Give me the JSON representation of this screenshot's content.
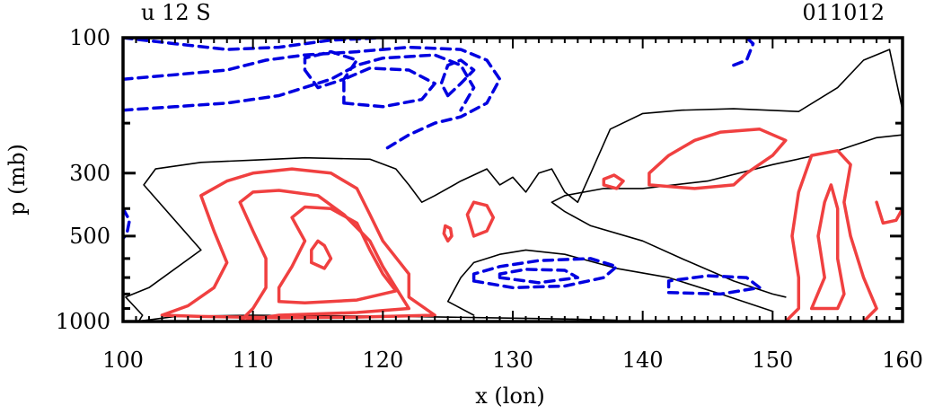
{
  "chart_data": {
    "type": "contour",
    "title_left": "u 12 S",
    "title_right": "011012",
    "xlabel": "x (lon)",
    "ylabel": "p (mb)",
    "xlim": [
      100,
      160
    ],
    "ylim": [
      1000,
      100
    ],
    "yscale": "log",
    "x_ticks": [
      {
        "value": 100,
        "label": "100"
      },
      {
        "value": 110,
        "label": "110"
      },
      {
        "value": 120,
        "label": "120"
      },
      {
        "value": 130,
        "label": "130"
      },
      {
        "value": 140,
        "label": "140"
      },
      {
        "value": 150,
        "label": "150"
      },
      {
        "value": 160,
        "label": "160"
      }
    ],
    "y_ticks": [
      {
        "value": 100,
        "label": "100"
      },
      {
        "value": 300,
        "label": "300"
      },
      {
        "value": 500,
        "label": "500"
      },
      {
        "value": 1000,
        "label": "1000"
      }
    ],
    "contour_colors": {
      "positive": "#f04040",
      "zero": "#000000",
      "negative": "#0000e0"
    },
    "contours": [
      {
        "sign": "zero",
        "points": [
          [
            101.2,
            1000
          ],
          [
            101.5,
            950
          ],
          [
            100.2,
            820
          ],
          [
            102,
            760
          ],
          [
            106,
            560
          ],
          [
            101.6,
            330
          ],
          [
            102.5,
            290
          ],
          [
            106,
            275
          ],
          [
            110,
            270
          ],
          [
            114,
            265
          ],
          [
            119,
            268
          ],
          [
            121,
            290
          ],
          [
            122,
            330
          ],
          [
            123,
            380
          ],
          [
            124,
            360
          ],
          [
            126,
            320
          ],
          [
            128,
            290
          ],
          [
            129,
            330
          ],
          [
            130,
            310
          ],
          [
            131,
            350
          ],
          [
            132,
            300
          ],
          [
            133,
            290
          ],
          [
            134,
            350
          ],
          [
            135,
            380
          ],
          [
            136,
            300
          ],
          [
            137.5,
            210
          ],
          [
            140,
            185
          ],
          [
            143,
            180
          ],
          [
            147,
            178
          ],
          [
            152,
            182
          ],
          [
            155,
            150
          ],
          [
            157,
            120
          ],
          [
            159,
            110
          ],
          [
            160,
            180
          ]
        ]
      },
      {
        "sign": "zero",
        "points": [
          [
            160,
            220
          ],
          [
            158,
            225
          ],
          [
            155,
            250
          ],
          [
            150,
            280
          ],
          [
            145,
            320
          ],
          [
            140,
            340
          ],
          [
            137,
            340
          ],
          [
            134,
            360
          ],
          [
            133,
            380
          ],
          [
            134,
            410
          ],
          [
            136,
            460
          ],
          [
            140,
            520
          ],
          [
            143,
            600
          ],
          [
            147,
            720
          ],
          [
            150,
            800
          ],
          [
            151,
            820
          ]
        ]
      },
      {
        "sign": "zero",
        "points": [
          [
            127,
            950
          ],
          [
            125,
            850
          ],
          [
            126,
            700
          ],
          [
            127,
            620
          ],
          [
            129,
            580
          ],
          [
            131,
            560
          ],
          [
            134,
            580
          ],
          [
            138,
            650
          ],
          [
            142,
            700
          ],
          [
            146,
            800
          ],
          [
            150,
            920
          ]
        ]
      },
      {
        "sign": "zero",
        "points": [
          [
            101,
            1000
          ],
          [
            104,
            960
          ],
          [
            110,
            950
          ],
          [
            116,
            955
          ],
          [
            122,
            960
          ],
          [
            128,
            970
          ],
          [
            134,
            980
          ],
          [
            138,
            990
          ]
        ]
      },
      {
        "sign": "positive",
        "points": [
          [
            103,
            950
          ],
          [
            106,
            960
          ],
          [
            112,
            970
          ],
          [
            118,
            965
          ],
          [
            124,
            950
          ],
          [
            122,
            820
          ],
          [
            122,
            680
          ],
          [
            120,
            520
          ],
          [
            119,
            420
          ],
          [
            118,
            340
          ],
          [
            116,
            300
          ],
          [
            113,
            290
          ],
          [
            110,
            300
          ],
          [
            108,
            320
          ],
          [
            106,
            360
          ],
          [
            107,
            480
          ],
          [
            108,
            620
          ],
          [
            107,
            760
          ],
          [
            105,
            880
          ],
          [
            103,
            950
          ]
        ]
      },
      {
        "sign": "positive",
        "points": [
          [
            109,
            1000
          ],
          [
            112,
            950
          ],
          [
            118,
            930
          ],
          [
            122,
            900
          ],
          [
            121,
            760
          ],
          [
            120,
            640
          ],
          [
            119,
            520
          ],
          [
            117,
            420
          ],
          [
            115,
            360
          ],
          [
            112,
            345
          ],
          [
            110,
            350
          ],
          [
            109,
            380
          ],
          [
            110,
            480
          ],
          [
            111,
            600
          ],
          [
            111,
            760
          ],
          [
            110,
            900
          ],
          [
            109,
            1000
          ]
        ]
      },
      {
        "sign": "positive",
        "points": [
          [
            112,
            850
          ],
          [
            114,
            860
          ],
          [
            118,
            840
          ],
          [
            121,
            780
          ],
          [
            120,
            680
          ],
          [
            119,
            560
          ],
          [
            118,
            450
          ],
          [
            116,
            400
          ],
          [
            114,
            395
          ],
          [
            113,
            430
          ],
          [
            114,
            520
          ],
          [
            113,
            640
          ],
          [
            112,
            760
          ],
          [
            112,
            850
          ]
        ]
      },
      {
        "sign": "positive",
        "points": [
          [
            114.5,
            620
          ],
          [
            115.5,
            650
          ],
          [
            116,
            600
          ],
          [
            115.5,
            540
          ],
          [
            115,
            520
          ],
          [
            114.5,
            560
          ],
          [
            114.5,
            620
          ]
        ]
      },
      {
        "sign": "positive",
        "points": [
          [
            140.5,
            330
          ],
          [
            144,
            340
          ],
          [
            147,
            330
          ],
          [
            148,
            300
          ],
          [
            150,
            260
          ],
          [
            151,
            230
          ],
          [
            149,
            210
          ],
          [
            146,
            215
          ],
          [
            144,
            230
          ],
          [
            142,
            260
          ],
          [
            140.5,
            300
          ],
          [
            140.5,
            330
          ]
        ]
      },
      {
        "sign": "positive",
        "points": [
          [
            151,
            1000
          ],
          [
            152,
            900
          ],
          [
            152,
            700
          ],
          [
            151.5,
            500
          ],
          [
            152,
            350
          ],
          [
            153,
            260
          ],
          [
            155,
            250
          ],
          [
            156,
            280
          ],
          [
            155.5,
            380
          ],
          [
            156,
            500
          ],
          [
            157,
            700
          ],
          [
            158,
            900
          ],
          [
            157,
            1000
          ]
        ]
      },
      {
        "sign": "positive",
        "points": [
          [
            153,
            900
          ],
          [
            154,
            700
          ],
          [
            153.5,
            500
          ],
          [
            154,
            380
          ],
          [
            154.5,
            330
          ],
          [
            155,
            400
          ],
          [
            155,
            600
          ],
          [
            155.5,
            800
          ],
          [
            155,
            900
          ],
          [
            153,
            900
          ]
        ]
      },
      {
        "sign": "positive",
        "points": [
          [
            158,
            380
          ],
          [
            158.5,
            450
          ],
          [
            159.5,
            440
          ],
          [
            160,
            400
          ]
        ]
      },
      {
        "sign": "positive",
        "points": [
          [
            127,
            500
          ],
          [
            128,
            480
          ],
          [
            128.5,
            430
          ],
          [
            128,
            390
          ],
          [
            127,
            380
          ],
          [
            126.5,
            420
          ],
          [
            127,
            500
          ]
        ]
      },
      {
        "sign": "positive",
        "points": [
          [
            125,
            520
          ],
          [
            125.3,
            500
          ],
          [
            125.2,
            470
          ],
          [
            124.8,
            460
          ],
          [
            124.7,
            490
          ],
          [
            125,
            520
          ]
        ]
      },
      {
        "sign": "positive",
        "points": [
          [
            137,
            330
          ],
          [
            138,
            340
          ],
          [
            138.5,
            320
          ],
          [
            137.8,
            305
          ],
          [
            137,
            315
          ],
          [
            137,
            330
          ]
        ]
      },
      {
        "sign": "negative",
        "points": [
          [
            100,
            100
          ],
          [
            104,
            105
          ],
          [
            108,
            110
          ],
          [
            112,
            108
          ],
          [
            116,
            102
          ],
          [
            120,
            100
          ]
        ]
      },
      {
        "sign": "negative",
        "points": [
          [
            100,
            140
          ],
          [
            104,
            135
          ],
          [
            108,
            130
          ],
          [
            111,
            120
          ],
          [
            114,
            115
          ],
          [
            118,
            112
          ],
          [
            122,
            108
          ],
          [
            126,
            110
          ],
          [
            128,
            120
          ],
          [
            129,
            140
          ],
          [
            128,
            170
          ],
          [
            126,
            190
          ],
          [
            124,
            200
          ],
          [
            122,
            220
          ],
          [
            120,
            250
          ]
        ]
      },
      {
        "sign": "negative",
        "points": [
          [
            100,
            180
          ],
          [
            104,
            175
          ],
          [
            108,
            170
          ],
          [
            112,
            160
          ],
          [
            116,
            140
          ],
          [
            118,
            125
          ],
          [
            120,
            118
          ],
          [
            124,
            115
          ],
          [
            126,
            125
          ],
          [
            127,
            150
          ],
          [
            126,
            180
          ]
        ]
      },
      {
        "sign": "negative",
        "points": [
          [
            114,
            130
          ],
          [
            115,
            150
          ],
          [
            117,
            140
          ],
          [
            118,
            120
          ],
          [
            116,
            112
          ],
          [
            114,
            118
          ],
          [
            114,
            130
          ]
        ]
      },
      {
        "sign": "negative",
        "points": [
          [
            117,
            170
          ],
          [
            120,
            175
          ],
          [
            123,
            165
          ],
          [
            124,
            145
          ],
          [
            122,
            130
          ],
          [
            119,
            128
          ],
          [
            117,
            140
          ],
          [
            117,
            170
          ]
        ]
      },
      {
        "sign": "negative",
        "points": [
          [
            125,
            160
          ],
          [
            126,
            145
          ],
          [
            127,
            130
          ],
          [
            126,
            120
          ],
          [
            125,
            125
          ],
          [
            124.5,
            145
          ],
          [
            125,
            160
          ]
        ]
      },
      {
        "sign": "negative",
        "points": [
          [
            147,
            125
          ],
          [
            148,
            120
          ],
          [
            148.5,
            105
          ],
          [
            148,
            100
          ]
        ]
      },
      {
        "sign": "negative",
        "points": [
          [
            100,
            400
          ],
          [
            100.5,
            440
          ],
          [
            100.3,
            490
          ],
          [
            100,
            510
          ]
        ]
      },
      {
        "sign": "negative",
        "points": [
          [
            127,
            720
          ],
          [
            130,
            760
          ],
          [
            134,
            750
          ],
          [
            137,
            700
          ],
          [
            138,
            640
          ],
          [
            136,
            600
          ],
          [
            132,
            610
          ],
          [
            129,
            640
          ],
          [
            127,
            680
          ],
          [
            127,
            720
          ]
        ]
      },
      {
        "sign": "negative",
        "points": [
          [
            129,
            700
          ],
          [
            132,
            730
          ],
          [
            135,
            700
          ],
          [
            134,
            660
          ],
          [
            131,
            655
          ],
          [
            129,
            680
          ],
          [
            129,
            700
          ]
        ]
      },
      {
        "sign": "negative",
        "points": [
          [
            142,
            790
          ],
          [
            146,
            800
          ],
          [
            149,
            760
          ],
          [
            148,
            700
          ],
          [
            145,
            690
          ],
          [
            142,
            720
          ],
          [
            142,
            790
          ]
        ]
      }
    ]
  }
}
